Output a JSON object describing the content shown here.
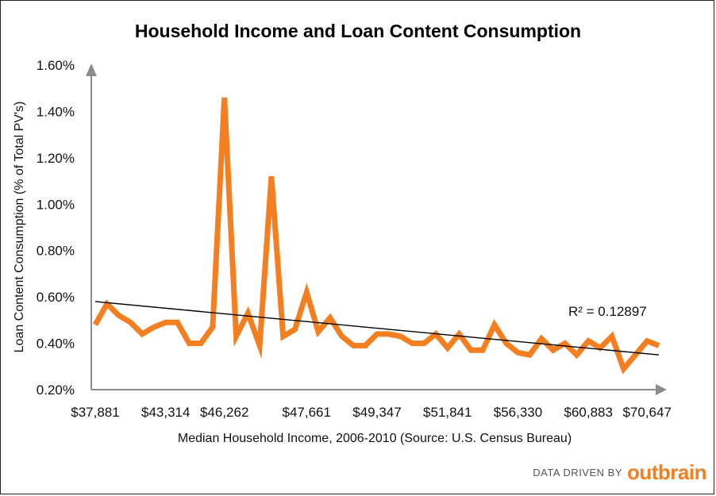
{
  "chart_data": {
    "type": "line",
    "title": "Household Income and Loan Content Consumption",
    "xlabel": "Median Household Income, 2006-2010 (Source: U.S. Census Bureau)",
    "ylabel": "Loan Content Consumption (% of Total PV's)",
    "ylim": [
      0.2,
      1.6
    ],
    "y_ticks": [
      "0.20%",
      "0.40%",
      "0.60%",
      "0.80%",
      "1.00%",
      "1.20%",
      "1.40%",
      "1.60%"
    ],
    "y_tick_values": [
      0.2,
      0.4,
      0.6,
      0.8,
      1.0,
      1.2,
      1.4,
      1.6
    ],
    "x_ticks": [
      "$37,881",
      "$43,314",
      "$46,262",
      "$47,661",
      "$49,347",
      "$51,841",
      "$56,330",
      "$60,883",
      "$70,647"
    ],
    "x_tick_indices": [
      0,
      6,
      11,
      18,
      24,
      30,
      36,
      42,
      47
    ],
    "series": [
      {
        "color": "#f47f20",
        "values": [
          0.48,
          0.57,
          0.52,
          0.49,
          0.44,
          0.47,
          0.49,
          0.49,
          0.4,
          0.4,
          0.47,
          1.46,
          0.43,
          0.53,
          0.39,
          1.12,
          0.43,
          0.46,
          0.62,
          0.45,
          0.51,
          0.43,
          0.39,
          0.39,
          0.44,
          0.44,
          0.43,
          0.4,
          0.4,
          0.44,
          0.38,
          0.44,
          0.37,
          0.37,
          0.48,
          0.4,
          0.36,
          0.35,
          0.42,
          0.37,
          0.4,
          0.35,
          0.41,
          0.38,
          0.43,
          0.29,
          0.35,
          0.41,
          0.39
        ]
      }
    ],
    "trendline": {
      "start": 0.58,
      "end": 0.35,
      "color": "#000000"
    },
    "annotation": "R² = 0.12897",
    "grid": false,
    "legend": "none"
  },
  "branding": {
    "prefix": "DATA DRIVEN BY",
    "logo": "outbrain",
    "color": "#f47f20"
  }
}
